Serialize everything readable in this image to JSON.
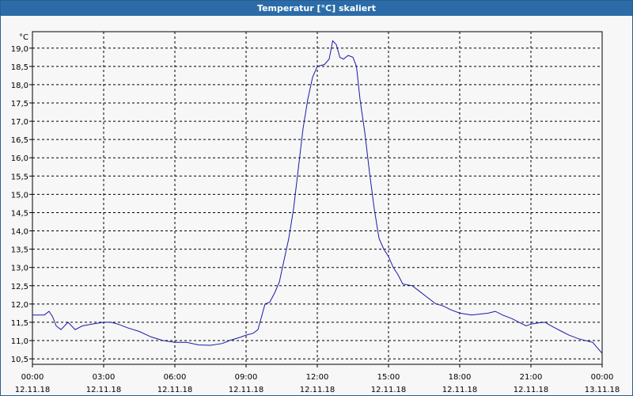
{
  "window": {
    "title": "Temperatur [°C] skaliert"
  },
  "chart_data": {
    "type": "line",
    "title": "Temperatur [°C] skaliert",
    "ylabel": "°C",
    "xlabel": "",
    "ylim": [
      10.35,
      19.45
    ],
    "xlim": [
      0,
      24
    ],
    "grid": true,
    "line_color": "#1a1aa8",
    "y_ticks": [
      {
        "value": 19.0,
        "label": "19,0"
      },
      {
        "value": 18.5,
        "label": "18,5"
      },
      {
        "value": 18.0,
        "label": "18,0"
      },
      {
        "value": 17.5,
        "label": "17,5"
      },
      {
        "value": 17.0,
        "label": "17,0"
      },
      {
        "value": 16.5,
        "label": "16,5"
      },
      {
        "value": 16.0,
        "label": "16,0"
      },
      {
        "value": 15.5,
        "label": "15,5"
      },
      {
        "value": 15.0,
        "label": "15,0"
      },
      {
        "value": 14.5,
        "label": "14,5"
      },
      {
        "value": 14.0,
        "label": "14,0"
      },
      {
        "value": 13.5,
        "label": "13,5"
      },
      {
        "value": 13.0,
        "label": "13,0"
      },
      {
        "value": 12.5,
        "label": "12,5"
      },
      {
        "value": 12.0,
        "label": "12,0"
      },
      {
        "value": 11.5,
        "label": "11,5"
      },
      {
        "value": 11.0,
        "label": "11,0"
      },
      {
        "value": 10.5,
        "label": "10,5"
      }
    ],
    "x_ticks": [
      {
        "value": 0,
        "time": "00:00",
        "date": "12.11.18"
      },
      {
        "value": 3,
        "time": "03:00",
        "date": "12.11.18"
      },
      {
        "value": 6,
        "time": "06:00",
        "date": "12.11.18"
      },
      {
        "value": 9,
        "time": "09:00",
        "date": "12.11.18"
      },
      {
        "value": 12,
        "time": "12:00",
        "date": "12.11.18"
      },
      {
        "value": 15,
        "time": "15:00",
        "date": "12.11.18"
      },
      {
        "value": 18,
        "time": "18:00",
        "date": "12.11.18"
      },
      {
        "value": 21,
        "time": "21:00",
        "date": "12.11.18"
      },
      {
        "value": 24,
        "time": "00:00",
        "date": "13.11.18"
      }
    ],
    "series": [
      {
        "points": [
          [
            0.0,
            11.7
          ],
          [
            0.5,
            11.7
          ],
          [
            0.7,
            11.8
          ],
          [
            0.85,
            11.65
          ],
          [
            1.0,
            11.4
          ],
          [
            1.2,
            11.3
          ],
          [
            1.5,
            11.5
          ],
          [
            1.8,
            11.3
          ],
          [
            2.1,
            11.4
          ],
          [
            2.5,
            11.45
          ],
          [
            3.0,
            11.5
          ],
          [
            3.3,
            11.5
          ],
          [
            3.6,
            11.45
          ],
          [
            4.0,
            11.35
          ],
          [
            4.5,
            11.25
          ],
          [
            5.0,
            11.1
          ],
          [
            5.5,
            11.0
          ],
          [
            6.0,
            10.95
          ],
          [
            6.5,
            10.95
          ],
          [
            7.0,
            10.88
          ],
          [
            7.5,
            10.87
          ],
          [
            8.0,
            10.92
          ],
          [
            8.3,
            11.0
          ],
          [
            8.8,
            11.1
          ],
          [
            9.0,
            11.15
          ],
          [
            9.3,
            11.2
          ],
          [
            9.5,
            11.3
          ],
          [
            9.8,
            12.0
          ],
          [
            10.0,
            12.05
          ],
          [
            10.2,
            12.3
          ],
          [
            10.4,
            12.6
          ],
          [
            10.6,
            13.2
          ],
          [
            10.8,
            13.8
          ],
          [
            11.0,
            14.6
          ],
          [
            11.2,
            15.7
          ],
          [
            11.4,
            16.8
          ],
          [
            11.6,
            17.6
          ],
          [
            11.8,
            18.2
          ],
          [
            12.0,
            18.5
          ],
          [
            12.3,
            18.55
          ],
          [
            12.5,
            18.7
          ],
          [
            12.65,
            19.2
          ],
          [
            12.8,
            19.1
          ],
          [
            12.95,
            18.75
          ],
          [
            13.1,
            18.7
          ],
          [
            13.3,
            18.8
          ],
          [
            13.5,
            18.75
          ],
          [
            13.65,
            18.5
          ],
          [
            13.8,
            17.6
          ],
          [
            14.0,
            16.7
          ],
          [
            14.2,
            15.6
          ],
          [
            14.4,
            14.6
          ],
          [
            14.6,
            13.8
          ],
          [
            14.8,
            13.5
          ],
          [
            15.0,
            13.3
          ],
          [
            15.2,
            13.0
          ],
          [
            15.4,
            12.8
          ],
          [
            15.6,
            12.55
          ],
          [
            16.0,
            12.5
          ],
          [
            16.3,
            12.35
          ],
          [
            16.6,
            12.2
          ],
          [
            17.0,
            12.0
          ],
          [
            17.3,
            11.95
          ],
          [
            17.6,
            11.85
          ],
          [
            18.0,
            11.75
          ],
          [
            18.5,
            11.7
          ],
          [
            18.8,
            11.72
          ],
          [
            19.2,
            11.75
          ],
          [
            19.5,
            11.8
          ],
          [
            19.8,
            11.7
          ],
          [
            20.2,
            11.6
          ],
          [
            20.5,
            11.5
          ],
          [
            20.8,
            11.4
          ],
          [
            21.0,
            11.45
          ],
          [
            21.3,
            11.48
          ],
          [
            21.6,
            11.5
          ],
          [
            21.8,
            11.42
          ],
          [
            22.0,
            11.35
          ],
          [
            22.3,
            11.25
          ],
          [
            22.6,
            11.15
          ],
          [
            23.0,
            11.05
          ],
          [
            23.3,
            11.0
          ],
          [
            23.6,
            10.95
          ],
          [
            23.8,
            10.8
          ],
          [
            24.0,
            10.65
          ]
        ]
      }
    ]
  }
}
